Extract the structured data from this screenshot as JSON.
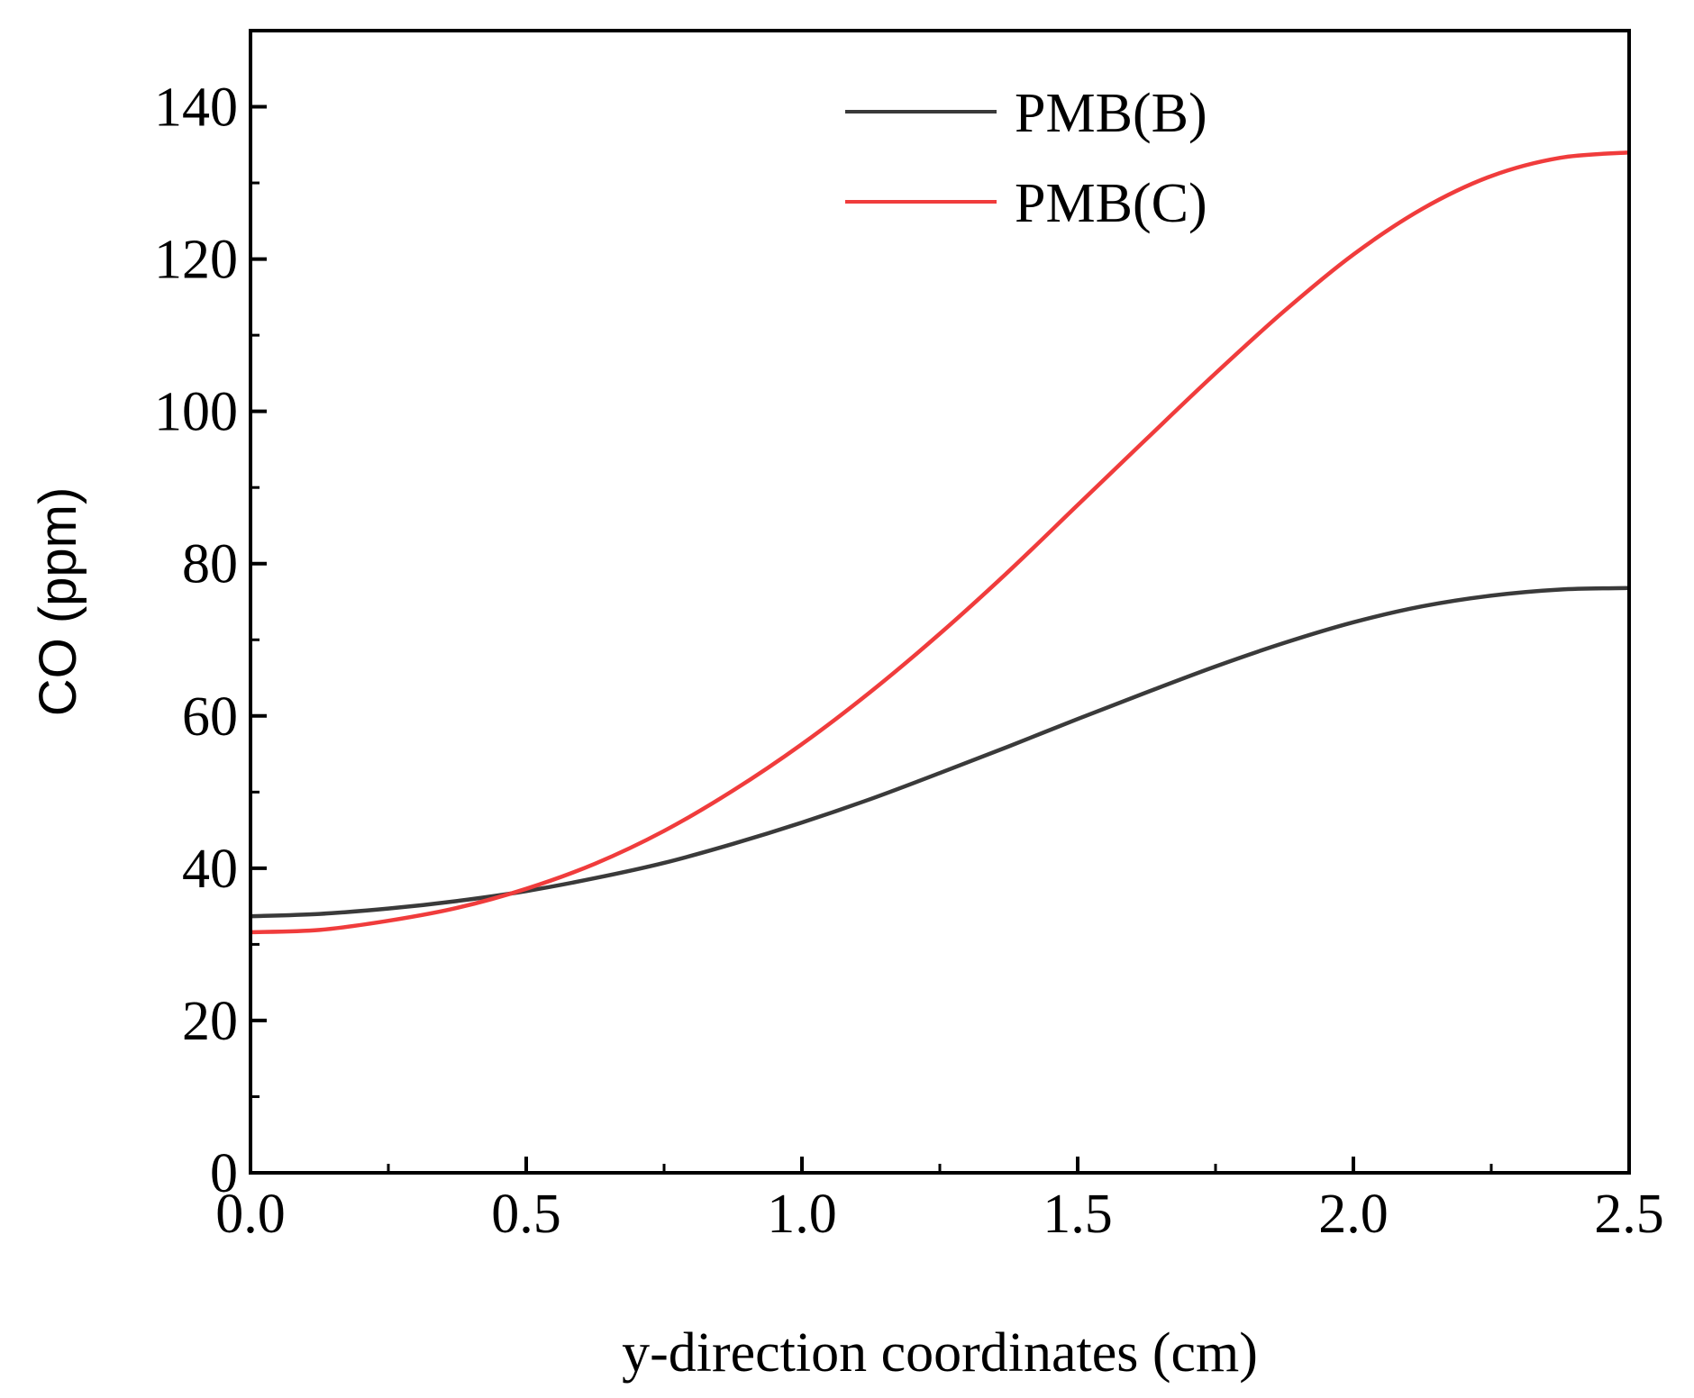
{
  "chart_data": {
    "type": "line",
    "title": "",
    "xlabel": "y-direction coordinates (cm)",
    "ylabel": "CO (ppm)",
    "xlim": [
      0,
      2.5
    ],
    "ylim": [
      0,
      150
    ],
    "x_ticks": [
      0.0,
      0.5,
      1.0,
      1.5,
      2.0,
      2.5
    ],
    "x_tick_labels": [
      "0.0",
      "0.5",
      "1.0",
      "1.5",
      "2.0",
      "2.5"
    ],
    "y_ticks": [
      0,
      20,
      40,
      60,
      80,
      100,
      120,
      140
    ],
    "y_tick_labels": [
      "0",
      "20",
      "40",
      "60",
      "80",
      "100",
      "120",
      "140"
    ],
    "grid": false,
    "legend_position": "top-right",
    "series": [
      {
        "name": "PMB(B)",
        "color": "#3a3a3a",
        "x": [
          0.0,
          0.125,
          0.25,
          0.375,
          0.5,
          0.625,
          0.75,
          0.875,
          1.0,
          1.125,
          1.25,
          1.375,
          1.5,
          1.625,
          1.75,
          1.875,
          2.0,
          2.125,
          2.25,
          2.375,
          2.5
        ],
        "y": [
          33.7,
          34.0,
          34.7,
          35.7,
          37.0,
          38.7,
          40.7,
          43.2,
          46.0,
          49.1,
          52.5,
          56.0,
          59.6,
          63.1,
          66.5,
          69.6,
          72.3,
          74.4,
          75.8,
          76.6,
          76.8
        ]
      },
      {
        "name": "PMB(C)",
        "color": "#f03c3c",
        "x": [
          0.0,
          0.125,
          0.25,
          0.375,
          0.5,
          0.625,
          0.75,
          0.875,
          1.0,
          1.125,
          1.25,
          1.375,
          1.5,
          1.625,
          1.75,
          1.875,
          2.0,
          2.125,
          2.25,
          2.375,
          2.5
        ],
        "y": [
          31.6,
          31.9,
          33.1,
          34.8,
          37.3,
          40.6,
          44.9,
          50.2,
          56.3,
          63.2,
          70.8,
          79.0,
          87.7,
          96.4,
          105.0,
          113.2,
          120.6,
          126.6,
          130.9,
          133.3,
          134.0
        ]
      }
    ]
  }
}
